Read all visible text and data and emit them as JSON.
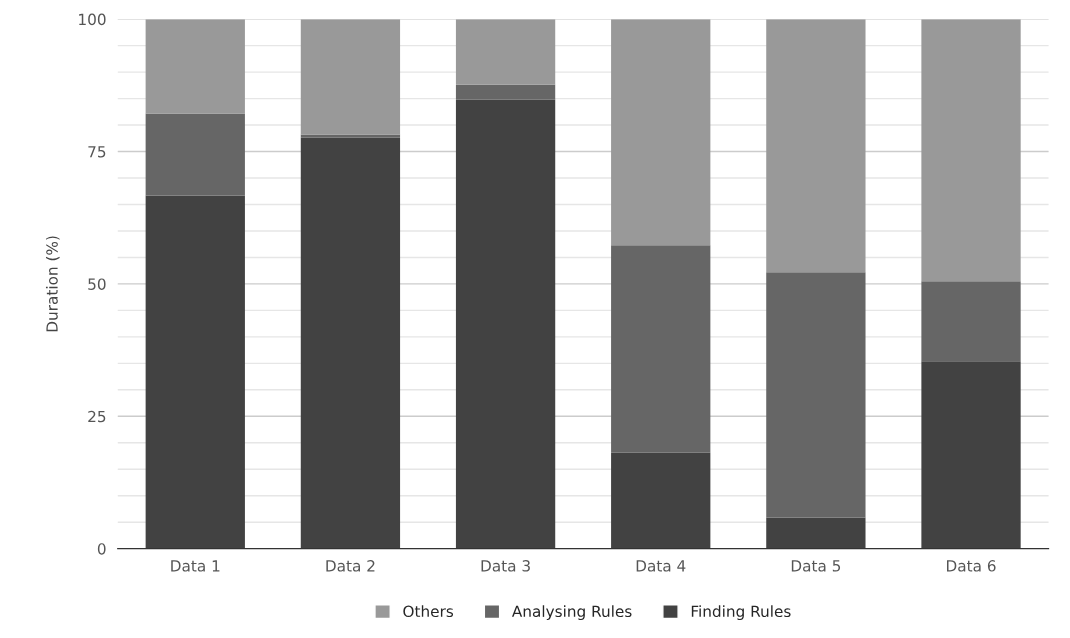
{
  "chart_data": {
    "type": "bar",
    "stacked": true,
    "ylabel": "Duration (%)",
    "categories": [
      "Data 1",
      "Data 2",
      "Data 3",
      "Data 4",
      "Data 5",
      "Data 6"
    ],
    "series": [
      {
        "name": "Finding Rules",
        "color": "#424242",
        "values": [
          66.7,
          77.6,
          84.8,
          18.1,
          5.9,
          35.4
        ]
      },
      {
        "name": "Analysing Rules",
        "color": "#666666",
        "values": [
          15.5,
          0.6,
          2.8,
          39.2,
          46.3,
          15.1
        ]
      },
      {
        "name": "Others",
        "color": "#999999",
        "values": [
          17.8,
          21.8,
          12.4,
          42.7,
          47.8,
          49.5
        ]
      }
    ],
    "ylim": [
      0,
      100
    ],
    "yticks": [
      0,
      {
        "value": 5,
        "label": null
      },
      {
        "value": 10,
        "label": null
      },
      {
        "value": 15,
        "label": null
      },
      {
        "value": 20,
        "label": null
      },
      25,
      {
        "value": 30,
        "label": null
      },
      {
        "value": 35,
        "label": null
      },
      {
        "value": 40,
        "label": null
      },
      {
        "value": 45,
        "label": null
      },
      50,
      {
        "value": 55,
        "label": null
      },
      {
        "value": 60,
        "label": null
      },
      {
        "value": 65,
        "label": null
      },
      {
        "value": 70,
        "label": null
      },
      75,
      {
        "value": 80,
        "label": null
      },
      {
        "value": 85,
        "label": null
      },
      {
        "value": 90,
        "label": null
      },
      {
        "value": 95,
        "label": null
      },
      100
    ],
    "grid": "y",
    "legend": "bottom"
  }
}
